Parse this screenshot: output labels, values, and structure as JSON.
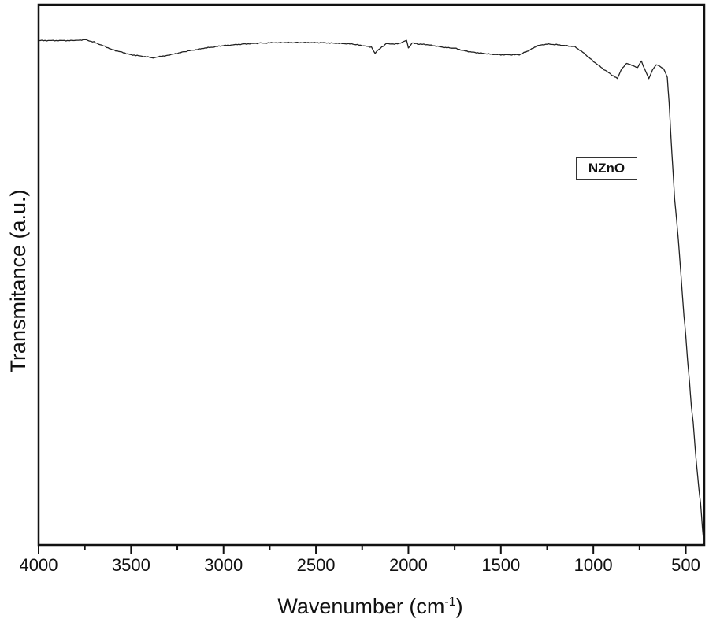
{
  "chart_data": {
    "type": "line",
    "title": "",
    "xlabel": "Wavenumber (cm-1)",
    "xlabel_main": "Wavenumber (cm",
    "xlabel_sup": "-1",
    "xlabel_close": ")",
    "ylabel": "Transmitance (a.u.)",
    "xlim": [
      4000,
      400
    ],
    "x_reversed": true,
    "ylim": [
      0,
      100
    ],
    "y_ticks_shown": false,
    "grid": false,
    "x_ticks": [
      4000,
      3500,
      3000,
      2500,
      2000,
      1500,
      1000,
      500
    ],
    "x_minor_ticks": [
      3750,
      3250,
      2750,
      2250,
      1750,
      1250,
      750
    ],
    "legend": {
      "position": "upper-right-inside",
      "entries": [
        "NZnO"
      ]
    },
    "series": [
      {
        "name": "NZnO",
        "color": "#222222",
        "x": [
          4000,
          3800,
          3750,
          3700,
          3600,
          3500,
          3400,
          3380,
          3300,
          3200,
          3100,
          3000,
          2900,
          2800,
          2700,
          2600,
          2500,
          2400,
          2300,
          2250,
          2200,
          2180,
          2160,
          2120,
          2100,
          2050,
          2010,
          2000,
          1980,
          1950,
          1900,
          1850,
          1800,
          1750,
          1700,
          1650,
          1600,
          1550,
          1500,
          1450,
          1400,
          1350,
          1300,
          1250,
          1200,
          1150,
          1100,
          1050,
          1000,
          950,
          900,
          870,
          850,
          820,
          800,
          760,
          740,
          720,
          700,
          680,
          660,
          640,
          620,
          600,
          590,
          580,
          570,
          560,
          550,
          540,
          530,
          520,
          510,
          500,
          490,
          480,
          470,
          460,
          450,
          440,
          430,
          420,
          410,
          402
        ],
        "y": [
          99.3,
          99.3,
          99.5,
          99.0,
          97.5,
          96.5,
          96.0,
          95.9,
          96.4,
          97.2,
          97.8,
          98.3,
          98.6,
          98.8,
          98.9,
          98.9,
          98.9,
          98.8,
          98.6,
          98.3,
          98.0,
          96.8,
          97.5,
          98.7,
          98.6,
          98.7,
          99.4,
          97.8,
          98.9,
          98.6,
          98.5,
          98.2,
          97.9,
          97.8,
          97.3,
          97.0,
          96.8,
          96.6,
          96.5,
          96.5,
          96.5,
          97.3,
          98.3,
          98.6,
          98.5,
          98.3,
          98.1,
          96.8,
          95.2,
          93.8,
          92.5,
          91.8,
          93.5,
          94.8,
          94.5,
          94.0,
          95.2,
          93.5,
          91.8,
          93.5,
          94.6,
          94.2,
          93.8,
          92.0,
          87.0,
          80.0,
          74.0,
          68.0,
          64.0,
          60.0,
          55.0,
          50.0,
          45.0,
          41.0,
          36.0,
          32.0,
          27.0,
          24.0,
          19.0,
          15.0,
          11.0,
          8.0,
          3.0,
          0.0
        ]
      }
    ],
    "annotations": []
  }
}
